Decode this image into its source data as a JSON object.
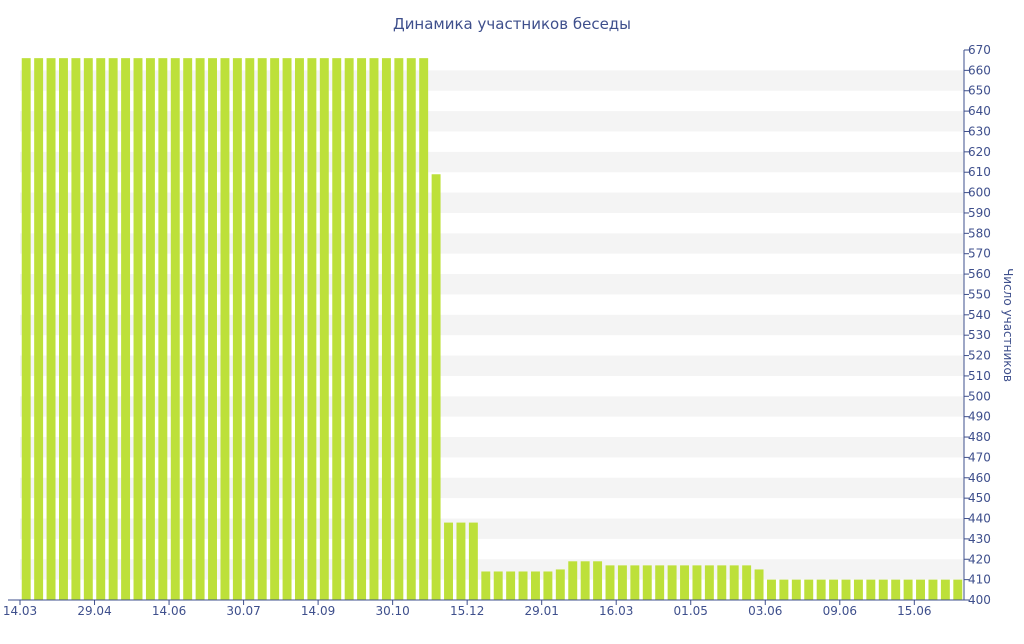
{
  "chart_data": {
    "type": "bar",
    "title": "Динамика участников беседы",
    "xlabel": "",
    "ylabel": "Число участников",
    "ylim": [
      400,
      670
    ],
    "y_ticks": [
      400,
      410,
      420,
      430,
      440,
      450,
      460,
      470,
      480,
      490,
      500,
      510,
      520,
      530,
      540,
      550,
      560,
      570,
      580,
      590,
      600,
      610,
      620,
      630,
      640,
      650,
      660,
      670
    ],
    "x_tick_labels": [
      "14.03",
      "29.04",
      "14.06",
      "30.07",
      "14.09",
      "30.10",
      "15.12",
      "29.01",
      "16.03",
      "01.05",
      "03.06",
      "09.06",
      "15.06"
    ],
    "x_tick_bar_index": [
      0,
      6,
      12,
      18,
      24,
      30,
      36,
      42,
      48,
      54,
      60,
      66,
      72
    ],
    "y_axis_position": "right",
    "grid": "alternating horizontal bands",
    "legend": "none",
    "values": [
      666,
      666,
      666,
      666,
      666,
      666,
      666,
      666,
      666,
      666,
      666,
      666,
      666,
      666,
      666,
      666,
      666,
      666,
      666,
      666,
      666,
      666,
      666,
      666,
      666,
      666,
      666,
      666,
      666,
      666,
      666,
      666,
      666,
      609,
      438,
      438,
      438,
      414,
      414,
      414,
      414,
      414,
      414,
      415,
      419,
      419,
      419,
      417,
      417,
      417,
      417,
      417,
      417,
      417,
      417,
      417,
      417,
      417,
      417,
      415,
      410,
      410,
      410,
      410,
      410,
      410,
      410,
      410,
      410,
      410,
      410,
      410,
      410,
      410,
      410,
      410
    ]
  },
  "colors": {
    "bar": "#bde03a",
    "band": "#f4f4f4",
    "text": "#3e4f8c",
    "axis": "#3e4f8c"
  }
}
